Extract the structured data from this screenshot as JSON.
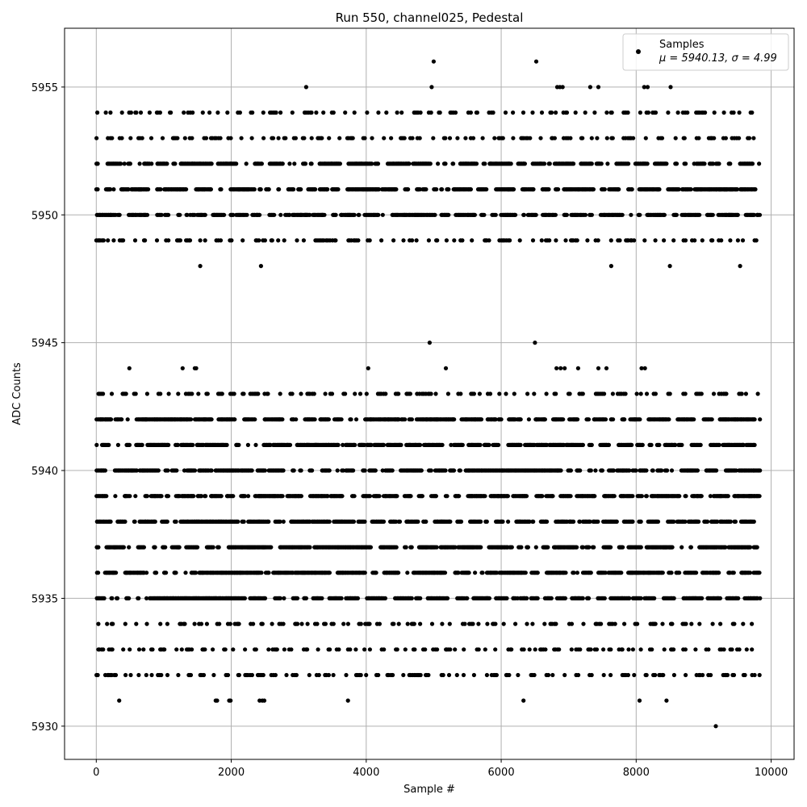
{
  "chart_data": {
    "type": "scatter",
    "title": "Run 550, channel025, Pedestal",
    "xlabel": "Sample #",
    "ylabel": "ADC Counts",
    "xlim": [
      -470,
      10340
    ],
    "ylim": [
      5928.7,
      5957.3
    ],
    "xticks": [
      0,
      2000,
      4000,
      6000,
      8000,
      10000
    ],
    "yticks": [
      5930,
      5935,
      5940,
      5945,
      5950,
      5955
    ],
    "grid": true,
    "legend_position": "top-right",
    "legend": {
      "label": "Samples",
      "stats": "μ = 5940.13, σ = 4.99"
    },
    "marker_color": "#000000",
    "x_extent": [
      0,
      9840
    ],
    "series": [
      {
        "color": "#000000",
        "dense_levels": [
          5935,
          5936,
          5937,
          5938,
          5939,
          5940,
          5941,
          5942,
          5950,
          5951,
          5952
        ],
        "sparse_levels": [
          5932,
          5933,
          5934,
          5943,
          5949,
          5953,
          5954
        ],
        "outliers": [
          {
            "x": 5000,
            "y": 5956
          },
          {
            "x": 6520,
            "y": 5956
          },
          {
            "x": 3110,
            "y": 5955
          },
          {
            "x": 4970,
            "y": 5955
          },
          {
            "x": 6830,
            "y": 5955
          },
          {
            "x": 6870,
            "y": 5955
          },
          {
            "x": 6910,
            "y": 5955
          },
          {
            "x": 7320,
            "y": 5955
          },
          {
            "x": 7440,
            "y": 5955
          },
          {
            "x": 8120,
            "y": 5955
          },
          {
            "x": 8170,
            "y": 5955
          },
          {
            "x": 8510,
            "y": 5955
          },
          {
            "x": 1540,
            "y": 5948
          },
          {
            "x": 2440,
            "y": 5948
          },
          {
            "x": 7630,
            "y": 5948
          },
          {
            "x": 8500,
            "y": 5948
          },
          {
            "x": 9540,
            "y": 5948
          },
          {
            "x": 4940,
            "y": 5945
          },
          {
            "x": 6500,
            "y": 5945
          },
          {
            "x": 490,
            "y": 5944
          },
          {
            "x": 1280,
            "y": 5944
          },
          {
            "x": 1460,
            "y": 5944
          },
          {
            "x": 1480,
            "y": 5944
          },
          {
            "x": 4030,
            "y": 5944
          },
          {
            "x": 5180,
            "y": 5944
          },
          {
            "x": 6820,
            "y": 5944
          },
          {
            "x": 6880,
            "y": 5944
          },
          {
            "x": 6940,
            "y": 5944
          },
          {
            "x": 7140,
            "y": 5944
          },
          {
            "x": 7440,
            "y": 5944
          },
          {
            "x": 7560,
            "y": 5944
          },
          {
            "x": 8080,
            "y": 5944
          },
          {
            "x": 8130,
            "y": 5944
          },
          {
            "x": 340,
            "y": 5931
          },
          {
            "x": 1770,
            "y": 5931
          },
          {
            "x": 1790,
            "y": 5931
          },
          {
            "x": 1970,
            "y": 5931
          },
          {
            "x": 1990,
            "y": 5931
          },
          {
            "x": 2420,
            "y": 5931
          },
          {
            "x": 2460,
            "y": 5931
          },
          {
            "x": 2490,
            "y": 5931
          },
          {
            "x": 3730,
            "y": 5931
          },
          {
            "x": 6330,
            "y": 5931
          },
          {
            "x": 8050,
            "y": 5931
          },
          {
            "x": 8450,
            "y": 5931
          },
          {
            "x": 9180,
            "y": 5930
          }
        ]
      }
    ]
  }
}
